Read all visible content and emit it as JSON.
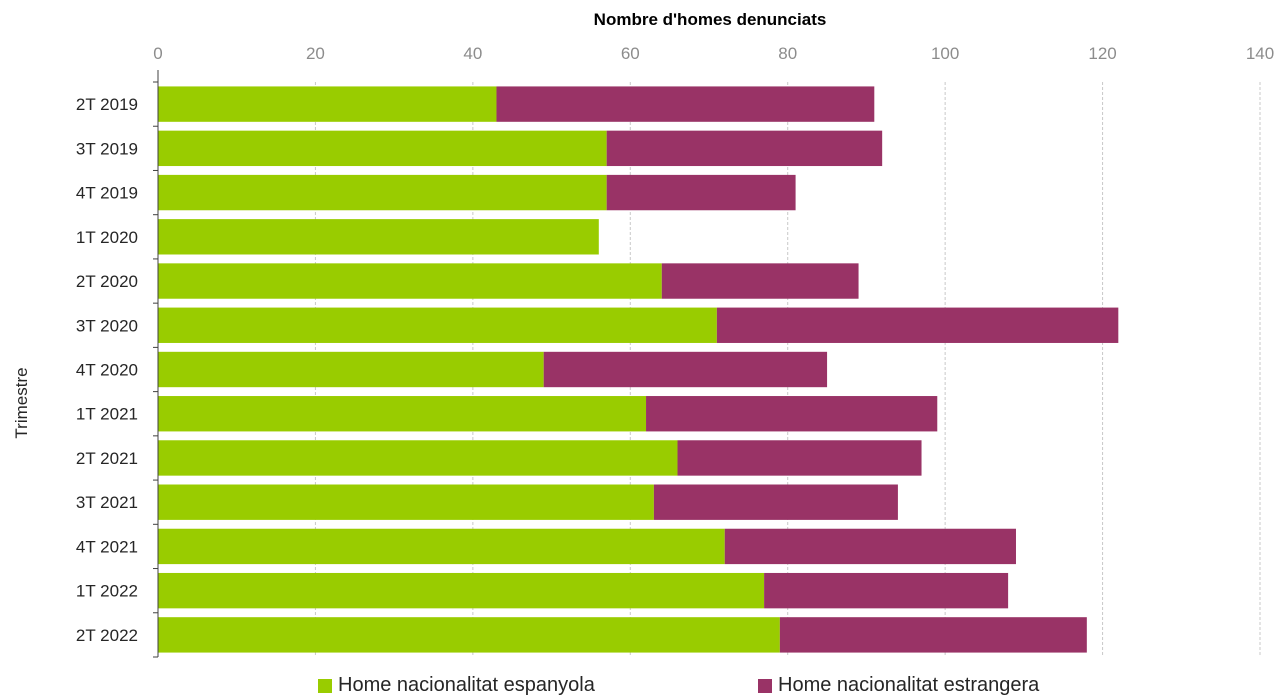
{
  "chart_data": {
    "type": "bar",
    "orientation": "horizontal",
    "stacked": true,
    "title": "",
    "xlabel": "Nombre d'homes denunciats",
    "ylabel": "Trimestre",
    "xlim": [
      0,
      140
    ],
    "xticks": [
      0,
      20,
      40,
      60,
      80,
      100,
      120,
      140
    ],
    "x_axis_position": "top",
    "grid": "vertical dashed",
    "legend_position": "bottom",
    "categories": [
      "2T 2019",
      "3T 2019",
      "4T 2019",
      "1T 2020",
      "2T 2020",
      "3T 2020",
      "4T 2020",
      "1T 2021",
      "2T 2021",
      "3T 2021",
      "4T 2021",
      "1T 2022",
      "2T 2022"
    ],
    "series": [
      {
        "name": "Home nacionalitat espanyola",
        "color": "#99cc00",
        "values": [
          43,
          57,
          57,
          56,
          64,
          71,
          49,
          62,
          66,
          63,
          72,
          77,
          79
        ]
      },
      {
        "name": "Home nacionalitat estrangera",
        "color": "#993366",
        "values": [
          48,
          35,
          24,
          0,
          25,
          51,
          36,
          37,
          31,
          31,
          37,
          31,
          39
        ]
      }
    ]
  }
}
